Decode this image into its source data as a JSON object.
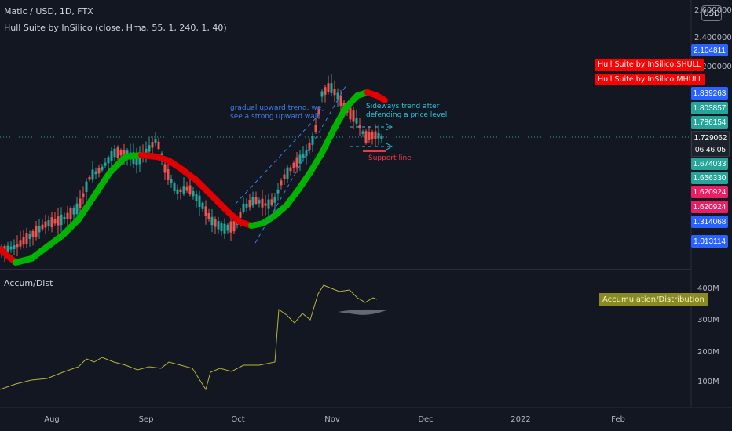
{
  "header": {
    "symbol_line": "Matic / USD, 1D, FTX",
    "indicator_line": "Hull Suite by InSilico (close, Hma, 55, 1, 240, 1, 40)"
  },
  "currency_button": "USD",
  "price_axis": {
    "ticks": [
      "2.600000",
      "2.400000",
      "2.200000"
    ]
  },
  "price_badges": [
    {
      "text": "2.104811",
      "color": "#2962ff"
    },
    {
      "text": "1.839263",
      "color": "#2962ff"
    },
    {
      "text": "1.803857",
      "color": "#26a69a"
    },
    {
      "text": "1.786154",
      "color": "#26a69a"
    },
    {
      "text": "1.729062",
      "color": "#1e222d"
    },
    {
      "text": "06:46:05",
      "color": "#1e222d"
    },
    {
      "text": "1.674033",
      "color": "#26a69a"
    },
    {
      "text": "1.656330",
      "color": "#26a69a"
    },
    {
      "text": "1.620924",
      "color": "#e91e63"
    },
    {
      "text": "1.620924",
      "color": "#e91e63"
    },
    {
      "text": "1.314068",
      "color": "#2962ff"
    },
    {
      "text": "1.013114",
      "color": "#2962ff"
    }
  ],
  "hull_tags": [
    "Hull Suite by InSilico:SHULL",
    "Hull Suite by InSilico:MHULL"
  ],
  "annotations": {
    "upward": "gradual upward trend, we see a strong upward wall",
    "sideways": "Sideways trend after defending a price level",
    "support": "Support line"
  },
  "lower_pane": {
    "label": "Accum/Dist",
    "tag": "Accumulation/Distribution",
    "ticks": [
      "400M",
      "300M",
      "200M",
      "100M"
    ]
  },
  "time_axis": [
    "Aug",
    "Sep",
    "Oct",
    "Nov",
    "Dec",
    "2022",
    "Feb"
  ],
  "colors": {
    "background": "#131722",
    "up_candle": "#26a69a",
    "down_candle": "#ef5350",
    "hull_up": "#00b300",
    "hull_down": "#e00000",
    "ad_line": "#b5b53a",
    "annotation_blue": "#3d7ce8",
    "annotation_cyan": "#26c6da",
    "annotation_red": "#f23645"
  }
}
